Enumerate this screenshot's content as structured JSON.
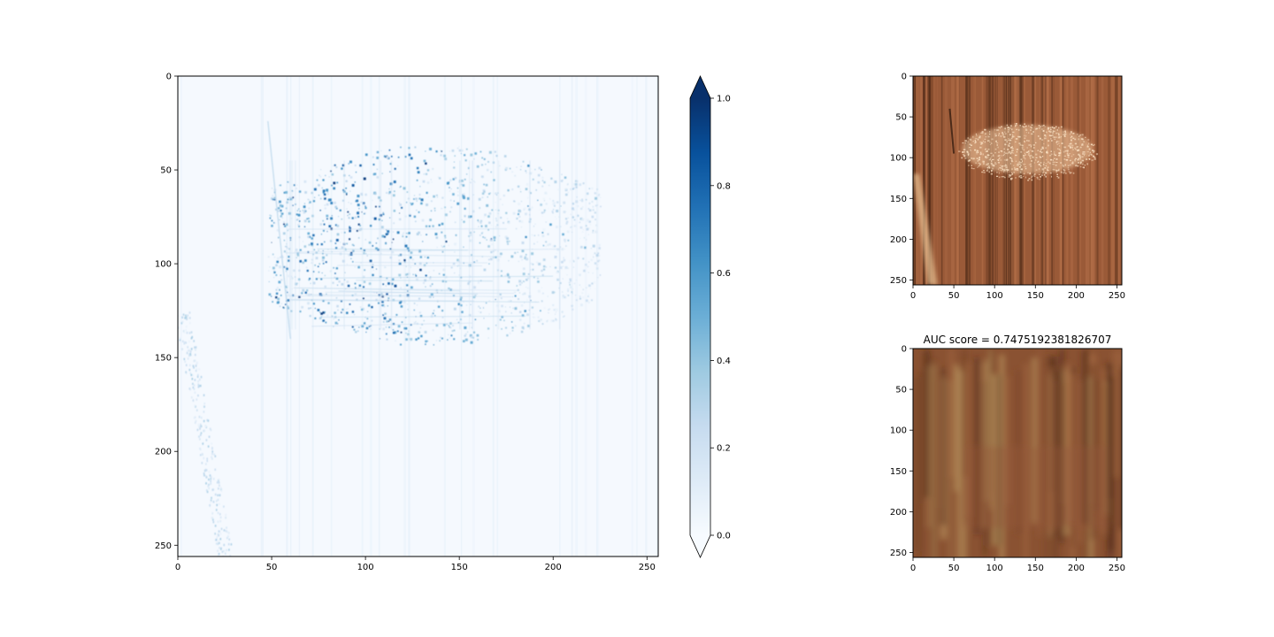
{
  "chart_data": [
    {
      "type": "heatmap",
      "description_values": "anomaly map: faint background, dense cluster of high values",
      "x_ticks": [
        0,
        50,
        100,
        150,
        200,
        250
      ],
      "y_ticks": [
        0,
        50,
        100,
        150,
        200,
        250
      ],
      "xlim": [
        0,
        256
      ],
      "ylim": [
        256,
        0
      ],
      "colormap": "Blues",
      "accent_color": "#08306b",
      "clusters": [
        {
          "x_range": [
            48,
            225
          ],
          "y_range": [
            30,
            138
          ],
          "peak": 0.95
        },
        {
          "x_range": [
            2,
            28
          ],
          "y_range": [
            125,
            256
          ],
          "peak": 0.35
        }
      ],
      "colorbar": {
        "ticks": [
          "0.0",
          "0.2",
          "0.4",
          "0.6",
          "0.8",
          "1.0"
        ],
        "range": [
          0.0,
          1.0
        ],
        "extend": "both"
      }
    },
    {
      "type": "image",
      "content": "wood surface with light scratched patch",
      "x_ticks": [
        0,
        50,
        100,
        150,
        200,
        250
      ],
      "y_ticks": [
        0,
        50,
        100,
        150,
        200,
        250
      ],
      "xlim": [
        0,
        256
      ],
      "ylim": [
        256,
        0
      ],
      "base_color": "#9a5a38"
    },
    {
      "type": "image",
      "title": "AUC score = 0.7475192381826707",
      "content": "blurred wood reconstruction",
      "x_ticks": [
        0,
        50,
        100,
        150,
        200,
        250
      ],
      "y_ticks": [
        0,
        50,
        100,
        150,
        200,
        250
      ],
      "xlim": [
        0,
        256
      ],
      "ylim": [
        256,
        0
      ],
      "base_color": "#8a5232"
    }
  ]
}
